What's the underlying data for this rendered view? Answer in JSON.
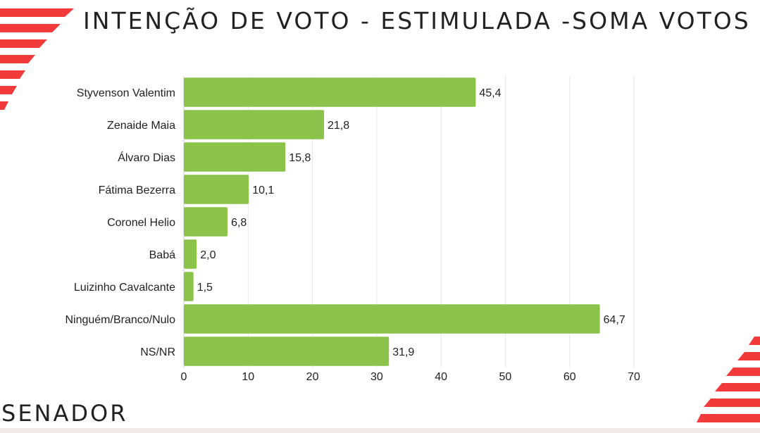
{
  "header": {
    "title": "INTENÇÃO DE VOTO - ESTIMULADA -SOMA VOTOS"
  },
  "footer": {
    "label": "SENADOR"
  },
  "colors": {
    "bar": "#8bc34a",
    "accent": "#f23a3a",
    "text": "#222222",
    "grid": "#e6e6e6"
  },
  "chart_data": {
    "type": "bar",
    "orientation": "horizontal",
    "categories": [
      "Styvenson Valentim",
      "Zenaide Maia",
      "Álvaro Dias",
      "Fátima Bezerra",
      "Coronel Helio",
      "Babá",
      "Luizinho Cavalcante",
      "Ninguém/Branco/Nulo",
      "NS/NR"
    ],
    "values": [
      45.4,
      21.8,
      15.8,
      10.1,
      6.8,
      2.0,
      1.5,
      64.7,
      31.9
    ],
    "value_labels": [
      "45,4",
      "21,8",
      "15,8",
      "10,1",
      "6,8",
      "2,0",
      "1,5",
      "64,7",
      "31,9"
    ],
    "xticks": [
      "0",
      "10",
      "20",
      "30",
      "40",
      "50",
      "60",
      "70"
    ],
    "xlim": [
      0,
      70
    ],
    "grid": true
  }
}
